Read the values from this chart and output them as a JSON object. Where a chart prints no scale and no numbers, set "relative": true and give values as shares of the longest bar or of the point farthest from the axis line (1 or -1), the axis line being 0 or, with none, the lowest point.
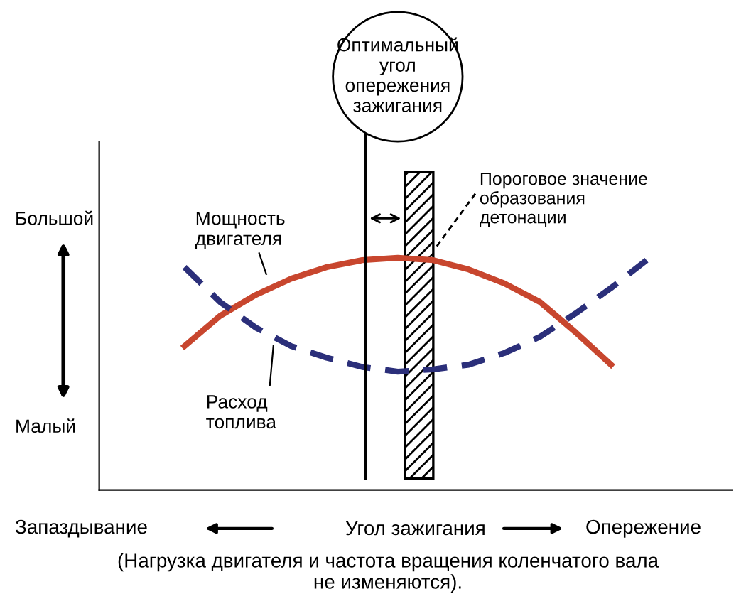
{
  "chart_data": {
    "type": "line",
    "relative": true,
    "xlabel": "Угол зажигания",
    "categories": [
      null,
      null,
      null,
      null,
      null,
      null,
      null,
      null,
      null,
      null,
      null,
      null,
      null,
      null
    ],
    "series": [
      {
        "name": "Мощность\nдвигателя",
        "color": "#c8462e",
        "line_style": "solid",
        "values": [
          0.62,
          0.75,
          0.84,
          0.91,
          0.96,
          0.99,
          1,
          0.99,
          0.95,
          0.89,
          0.81,
          0.68,
          0.54,
          null
        ]
      },
      {
        "name": "Расход\nтоплива",
        "color": "#2b2f7a",
        "line_style": "dashed",
        "values": [
          0.96,
          0.81,
          0.7,
          0.62,
          0.57,
          0.53,
          0.51,
          0.52,
          0.54,
          0.59,
          0.66,
          0.76,
          0.87,
          0.99
        ]
      }
    ],
    "annotations": [
      "Оптимальный\nугол\nопережения\nзажигания",
      "Пороговое значение\nобразования\nдетонации",
      "Большой",
      "Малый",
      "Запаздывание",
      "Опережение",
      "(Нагрузка двигателя и частота вращения коленчатого вала\nне изменяются)."
    ],
    "grid": false,
    "legend": false,
    "marker": "none"
  }
}
